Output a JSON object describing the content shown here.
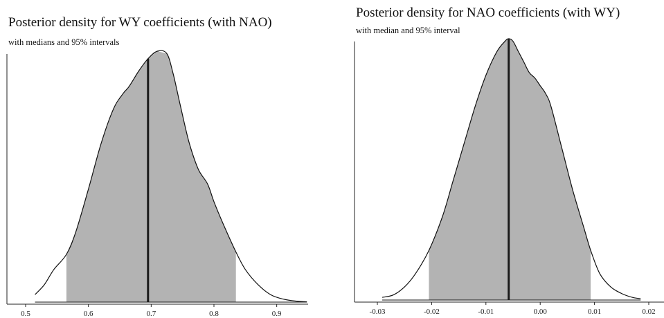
{
  "chart_data": [
    {
      "type": "area",
      "title": "Posterior density for WY coefficients (with NAO)",
      "subtitle": "with medians and 95% intervals",
      "xlabel": "",
      "ylabel": "",
      "x_ticks": [
        0.5,
        0.6,
        0.7,
        0.8,
        0.9
      ],
      "xlim": [
        0.5,
        0.95
      ],
      "median": 0.695,
      "interval_95": [
        0.565,
        0.835
      ],
      "grid": false,
      "x": [
        0.515,
        0.53,
        0.545,
        0.565,
        0.58,
        0.6,
        0.62,
        0.64,
        0.655,
        0.665,
        0.68,
        0.695,
        0.71,
        0.725,
        0.735,
        0.745,
        0.76,
        0.775,
        0.79,
        0.8,
        0.815,
        0.835,
        0.85,
        0.87,
        0.89,
        0.91,
        0.93,
        0.948
      ],
      "density": [
        0.03,
        0.07,
        0.13,
        0.19,
        0.28,
        0.45,
        0.63,
        0.77,
        0.83,
        0.86,
        0.92,
        0.97,
        1.0,
        0.99,
        0.91,
        0.8,
        0.64,
        0.53,
        0.47,
        0.4,
        0.31,
        0.2,
        0.13,
        0.07,
        0.03,
        0.012,
        0.004,
        0.001
      ]
    },
    {
      "type": "area",
      "title": "Posterior density for NAO coefficients (with WY)",
      "subtitle": "with median and 95% interval",
      "xlabel": "",
      "ylabel": "",
      "x_ticks": [
        -0.03,
        -0.02,
        -0.01,
        0.0,
        0.01,
        0.02
      ],
      "tick_labels": [
        "-0.03",
        "-0.02",
        "-0.01",
        "0.00",
        "0.01",
        "0.02"
      ],
      "xlim": [
        -0.03,
        0.02
      ],
      "median": -0.0058,
      "interval_95": [
        -0.0205,
        0.0093
      ],
      "grid": false,
      "x": [
        -0.0291,
        -0.027,
        -0.025,
        -0.023,
        -0.0205,
        -0.018,
        -0.016,
        -0.014,
        -0.012,
        -0.01,
        -0.008,
        -0.0065,
        -0.0058,
        -0.005,
        -0.004,
        -0.003,
        -0.002,
        -0.001,
        0.0,
        0.001,
        0.002,
        0.004,
        0.006,
        0.008,
        0.0093,
        0.011,
        0.013,
        0.015,
        0.017,
        0.0185
      ],
      "density": [
        0.01,
        0.02,
        0.05,
        0.1,
        0.19,
        0.32,
        0.46,
        0.6,
        0.74,
        0.86,
        0.95,
        0.99,
        1.0,
        0.99,
        0.95,
        0.91,
        0.87,
        0.85,
        0.82,
        0.79,
        0.74,
        0.58,
        0.42,
        0.28,
        0.19,
        0.1,
        0.05,
        0.025,
        0.01,
        0.005
      ]
    }
  ],
  "colors": {
    "fill": "#b3b3b3",
    "stroke": "#111111",
    "median_line": "#1a1a1a"
  }
}
